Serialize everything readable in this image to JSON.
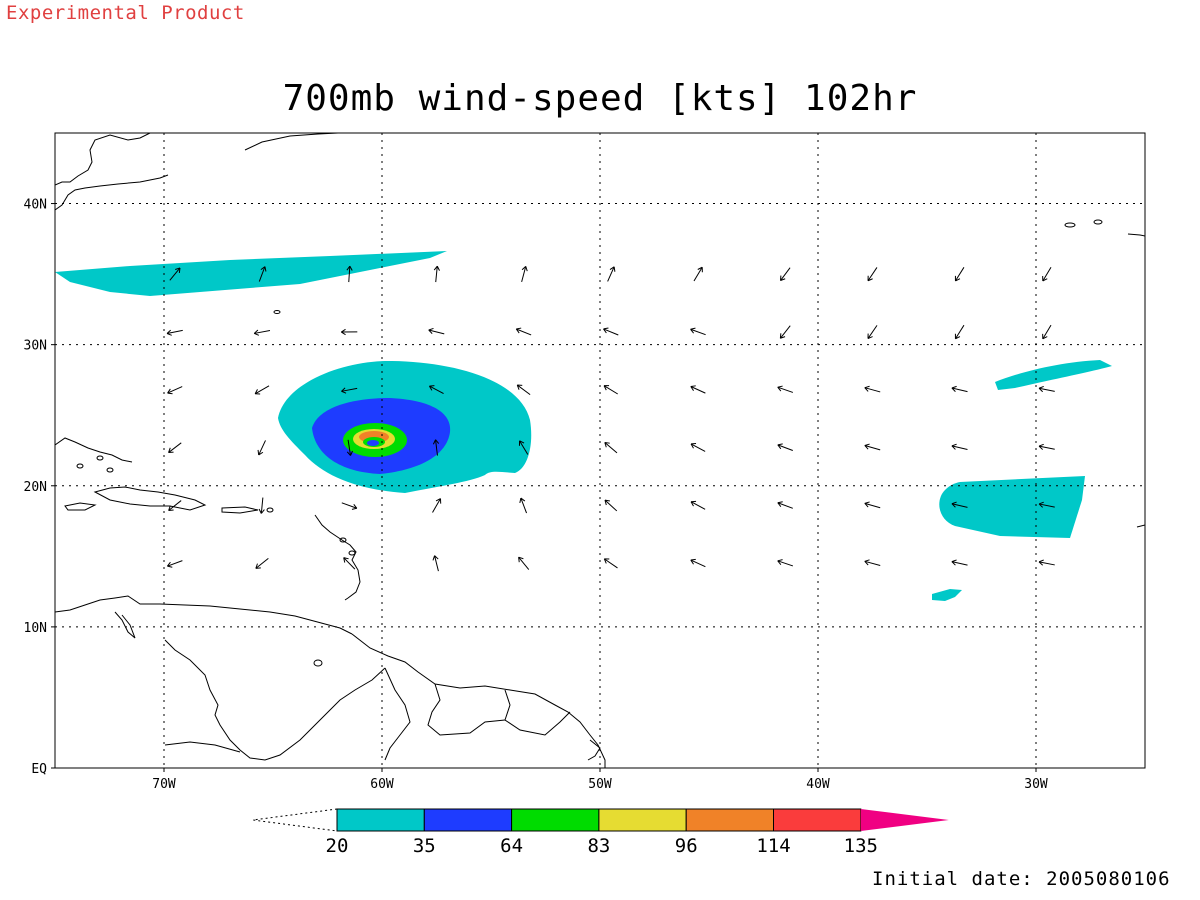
{
  "header": {
    "experimental_label": "Experimental Product",
    "title": "700mb wind-speed [kts] 102hr"
  },
  "footer": {
    "initial_date": "Initial date: 2005080106"
  },
  "map": {
    "lon_range": [
      -75,
      -25
    ],
    "lat_range": [
      0,
      45
    ],
    "lat_ticks": [
      {
        "value": 0,
        "label": "EQ"
      },
      {
        "value": 10,
        "label": "10N"
      },
      {
        "value": 20,
        "label": "20N"
      },
      {
        "value": 30,
        "label": "30N"
      },
      {
        "value": 40,
        "label": "40N"
      }
    ],
    "lon_ticks": [
      {
        "value": -70,
        "label": "70W"
      },
      {
        "value": -60,
        "label": "60W"
      },
      {
        "value": -50,
        "label": "50W"
      },
      {
        "value": -40,
        "label": "40W"
      },
      {
        "value": -30,
        "label": "30W"
      }
    ],
    "grid": true
  },
  "colorbar": {
    "levels": [
      "20",
      "35",
      "64",
      "83",
      "96",
      "114",
      "135"
    ],
    "colors": [
      "#00c8c8",
      "#1e3cff",
      "#00dc00",
      "#e6dc32",
      "#f08228",
      "#fa3c3c",
      "#f00082"
    ]
  },
  "chart_data": {
    "type": "heatmap",
    "title": "700mb wind-speed [kts] 102hr",
    "units": "kts",
    "contour_levels": [
      20,
      35,
      64,
      83,
      96,
      114,
      135
    ],
    "features": [
      {
        "name": "hurricane",
        "center_lon": -60.3,
        "center_lat": 23.0,
        "max_speed_band": [
          96,
          114
        ]
      },
      {
        "name": "northern jet streak",
        "lon_range": [
          -75,
          -57
        ],
        "lat_range": [
          33.5,
          36.5
        ],
        "speed_band": [
          20,
          35
        ]
      },
      {
        "name": "eastern wind maximum",
        "lon_range": [
          -37,
          -28
        ],
        "lat_range": [
          16.5,
          20.5
        ],
        "speed_band": [
          20,
          35
        ]
      },
      {
        "name": "northeastern wind maximum",
        "lon_range": [
          -31.5,
          -27
        ],
        "lat_range": [
          27,
          29
        ],
        "speed_band": [
          20,
          35
        ]
      },
      {
        "name": "small patch",
        "lon_range": [
          -35,
          -33.5
        ],
        "lat_range": [
          11.8,
          12.7
        ],
        "speed_band": [
          20,
          35
        ]
      }
    ]
  }
}
